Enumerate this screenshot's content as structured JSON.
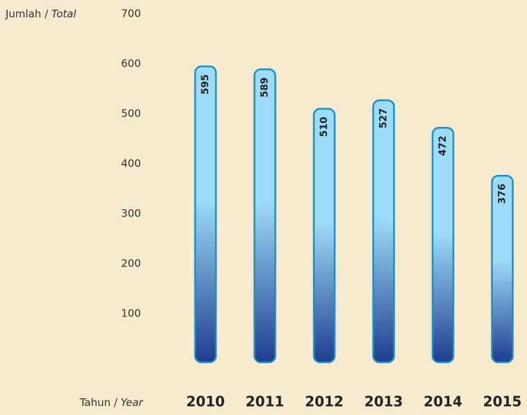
{
  "chart_data": {
    "type": "bar",
    "y_axis_label": {
      "main": "Jumlah",
      "sep": "/",
      "alt": "Total"
    },
    "x_axis_label": {
      "main": "Tahun",
      "sep": "/",
      "alt": "Year"
    },
    "categories": [
      "2010",
      "2011",
      "2012",
      "2013",
      "2014",
      "2015"
    ],
    "values": [
      595,
      589,
      510,
      527,
      472,
      376
    ],
    "colors": {
      "top": "#9ddcf8",
      "bottom": "#1f3d8f",
      "border": "#1b8fc7"
    },
    "ylim": [
      0,
      700
    ],
    "yticks": [
      100,
      200,
      300,
      400,
      500,
      600,
      700
    ],
    "grid": false
  }
}
